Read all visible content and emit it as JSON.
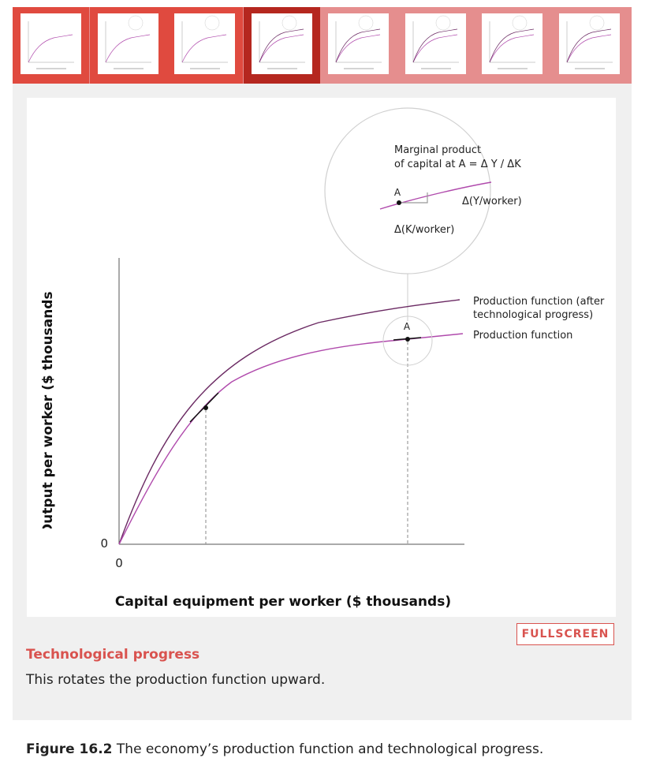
{
  "thumbnails": [
    {
      "state": "visited"
    },
    {
      "state": "visited"
    },
    {
      "state": "visited"
    },
    {
      "state": "active"
    },
    {
      "state": "unvisited"
    },
    {
      "state": "unvisited"
    },
    {
      "state": "unvisited"
    },
    {
      "state": "unvisited"
    }
  ],
  "colors": {
    "strip": "#e58e8e",
    "visited": "#e04a3f",
    "active": "#b5271f",
    "accent": "#d9534f",
    "curve_base": "#b04aac",
    "curve_after": "#6b2a63"
  },
  "chart_data": {
    "type": "line",
    "xlabel": "Capital equipment per worker ($ thousands)",
    "ylabel": "Output per worker ($ thousands)",
    "x_origin_label": "0",
    "y_origin_label": "0",
    "series": [
      {
        "name": "Production function (after technological progress)",
        "label_line1": "Production function (after",
        "label_line2": "technological progress)"
      },
      {
        "name": "Production function"
      }
    ],
    "point_label": "A",
    "magnifier": {
      "title_line1": "Marginal product",
      "title_line2": "of capital at A = Δ Y / ΔK",
      "point_label": "A",
      "dy_label": "Δ(Y/worker)",
      "dx_label": "Δ(K/worker)"
    }
  },
  "fullscreen_label": "FULLSCREEN",
  "step": {
    "title": "Technological progress",
    "description": "This rotates the production function upward."
  },
  "caption": {
    "number": "Figure 16.2",
    "text": " The economy’s production function and technological progress."
  }
}
